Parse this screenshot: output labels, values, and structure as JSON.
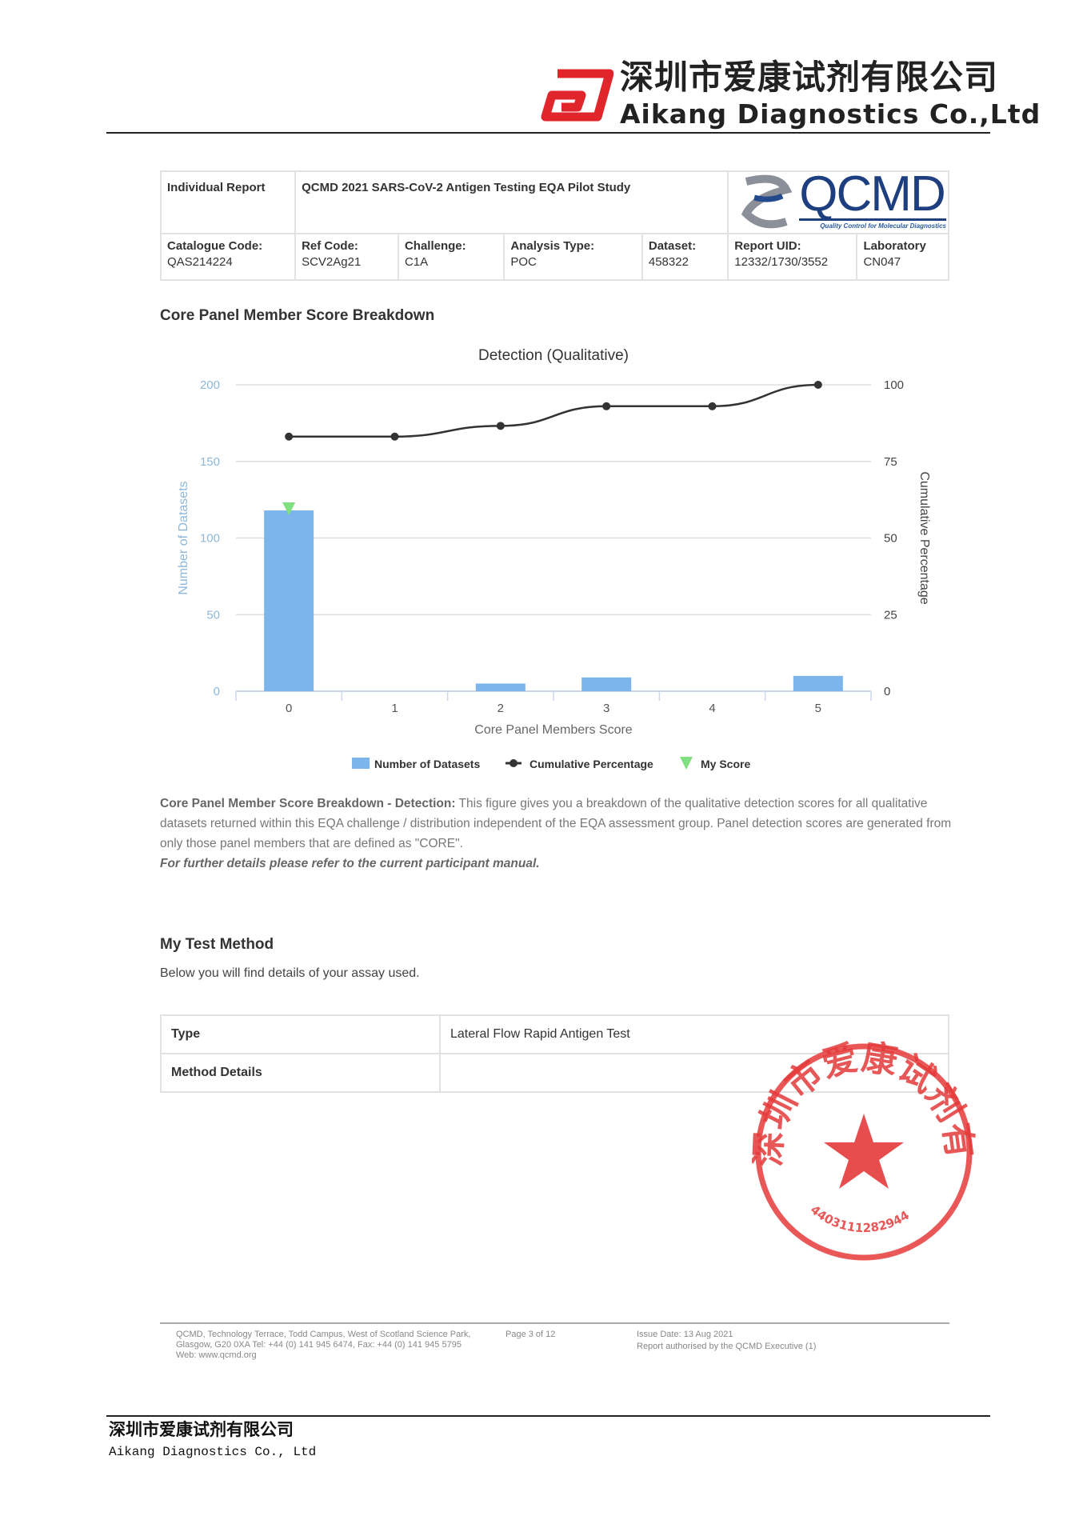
{
  "header": {
    "company_cn": "深圳市爱康试剂有限公司",
    "company_en": "Aikang Diagnostics Co.,Ltd"
  },
  "report": {
    "title_left": "Individual Report",
    "title_main": "QCMD 2021 SARS-CoV-2 Antigen Testing EQA Pilot Study",
    "logo_text": "QCMD",
    "logo_tagline": "Quality Control for Molecular Diagnostics",
    "fields": [
      {
        "label": "Catalogue Code:",
        "value": "QAS214224"
      },
      {
        "label": "Ref Code:",
        "value": "SCV2Ag21"
      },
      {
        "label": "Challenge:",
        "value": "C1A"
      },
      {
        "label": "Analysis Type:",
        "value": "POC"
      },
      {
        "label": "Dataset:",
        "value": "458322"
      },
      {
        "label": "Report UID:",
        "value": "12332/1730/3552"
      },
      {
        "label": "Laboratory",
        "value": "CN047"
      }
    ]
  },
  "section1_title": "Core Panel Member Score Breakdown",
  "chart_data": {
    "type": "bar",
    "title": "Detection (Qualitative)",
    "xlabel": "Core Panel Members Score",
    "ylabel": "Number of Datasets",
    "y2label": "Cumulative Percentage",
    "categories": [
      "0",
      "1",
      "2",
      "3",
      "4",
      "5"
    ],
    "ylim": [
      0,
      200
    ],
    "yticks": [
      "0",
      "50",
      "100",
      "150",
      "200"
    ],
    "y2lim": [
      0,
      100
    ],
    "y2ticks": [
      "0",
      "25",
      "50",
      "75",
      "100"
    ],
    "grid": true,
    "legend": "bottom",
    "series": [
      {
        "name": "Number of Datasets",
        "type": "bar",
        "color": "#7cb5ec",
        "values": [
          118,
          0,
          5,
          9,
          0,
          10
        ]
      },
      {
        "name": "Cumulative Percentage",
        "type": "line",
        "axis": "right",
        "color": "#333333",
        "values": [
          83.1,
          83.1,
          86.6,
          93.0,
          93.0,
          100
        ]
      },
      {
        "name": "My Score",
        "type": "marker",
        "color": "#7ee07e",
        "category": "0",
        "value": 118
      }
    ]
  },
  "description": {
    "bold": "Core Panel Member Score Breakdown - Detection:",
    "text": " This figure gives you a breakdown of the qualitative detection scores for all qualitative datasets returned within this EQA challenge / distribution independent of the EQA assessment group. Panel detection scores are generated from only those panel members that are defined as \"CORE\".",
    "note": "For further details please refer to the current participant manual."
  },
  "method": {
    "title": "My Test Method",
    "subtitle": "Below you will find details of your assay used.",
    "rows": [
      {
        "label": "Type",
        "value": "Lateral Flow Rapid Antigen Test"
      },
      {
        "label": "Method Details",
        "value": ""
      }
    ]
  },
  "stamp": {
    "text": "深圳市爱康试剂有限公司",
    "number": "4403111282944"
  },
  "footer": {
    "address": "QCMD, Technology Terrace, Todd Campus, West of Scotland Science Park, Glasgow, G20 0XA Tel: +44 (0) 141 945 6474, Fax: +44 (0) 141 945 5795 Web: www.qcmd.org",
    "page": "Page 3 of 12",
    "issue": "Issue Date: 13 Aug 2021",
    "authorised": "Report authorised by the QCMD Executive (1)"
  },
  "bottom": {
    "cn": "深圳市爱康试剂有限公司",
    "en": "Aikang Diagnostics Co., Ltd"
  }
}
